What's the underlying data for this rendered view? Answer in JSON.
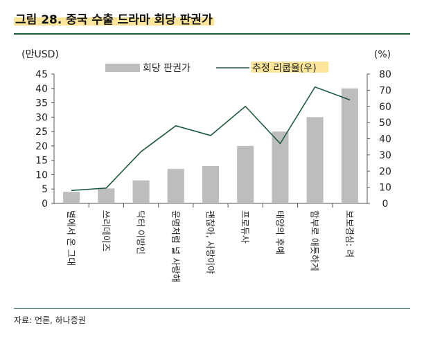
{
  "title": "그림 28. 중국 수출 드라마 회당 판권가",
  "source": "자료: 언론, 하나증권",
  "chart_data": {
    "type": "bar",
    "categories": [
      "별에서 온 그대",
      "쓰리데이즈",
      "닥터 이방인",
      "운명처럼 널 사랑해",
      "괜찮아, 사랑이야",
      "프로듀사",
      "태양의 후예",
      "함부로 애틋하게",
      "보보경심: 려"
    ],
    "series": [
      {
        "name": "회당 판권가",
        "type": "bar",
        "axis": "left",
        "color": "#bdbdbd",
        "values": [
          4,
          5.2,
          8,
          12,
          13,
          20,
          25,
          30,
          40
        ]
      },
      {
        "name": "추정 리쿱율(우)",
        "type": "line",
        "axis": "right",
        "color": "#1e5a3c",
        "values": [
          8,
          9.5,
          32,
          48,
          42,
          60,
          37,
          72,
          64
        ]
      }
    ],
    "ylabel_left": "(만USD)",
    "ylabel_right": "(%)",
    "ylim_left": [
      0,
      45
    ],
    "yticks_left": [
      0,
      5,
      10,
      15,
      20,
      25,
      30,
      35,
      40,
      45
    ],
    "ylim_right": [
      0,
      80
    ],
    "yticks_right": [
      0,
      10,
      20,
      30,
      40,
      50,
      60,
      70,
      80
    ],
    "legend_position": "top",
    "grid": false
  }
}
